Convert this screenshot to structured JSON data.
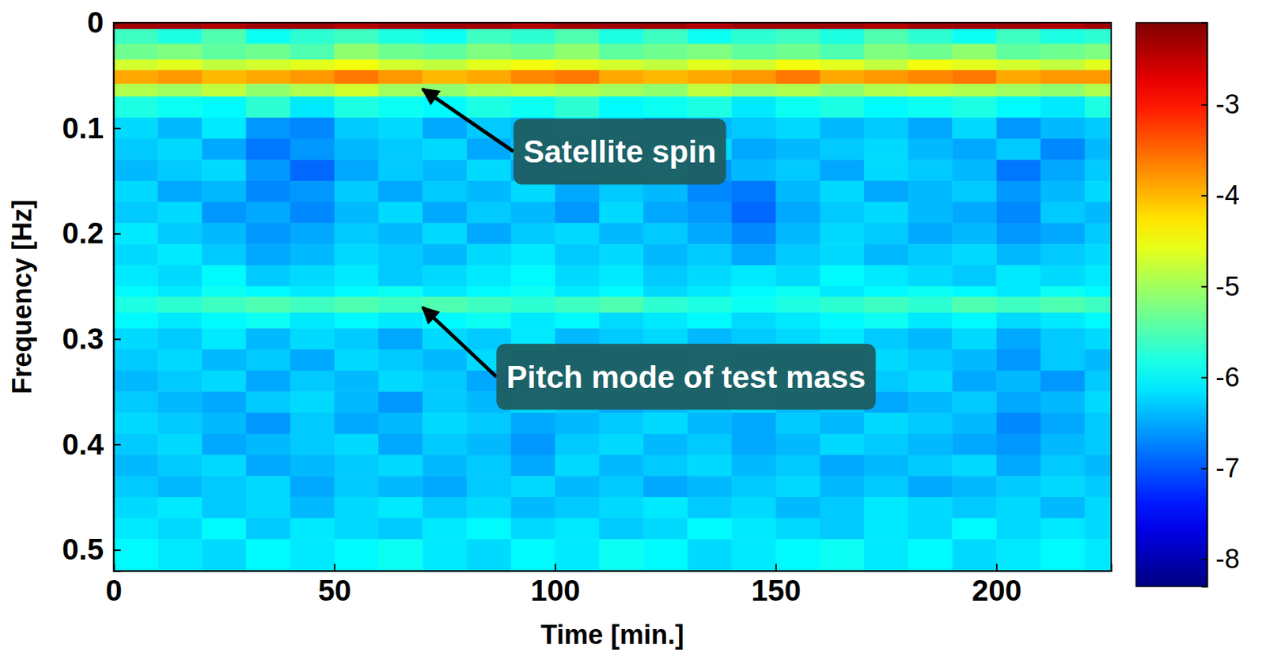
{
  "chart_data": {
    "type": "heatmap",
    "x_label": "Time [min.]",
    "y_label": "Frequency [Hz]",
    "xlim": [
      0,
      226
    ],
    "xticks": [
      0,
      50,
      100,
      150,
      200
    ],
    "ylim": [
      0,
      0.52
    ],
    "yticks": [
      0,
      0.1,
      0.2,
      0.3,
      0.4,
      0.5
    ],
    "x_bins": [
      0,
      10,
      20,
      30,
      40,
      50,
      60,
      70,
      80,
      90,
      100,
      110,
      120,
      130,
      140,
      150,
      160,
      170,
      180,
      190,
      200,
      210,
      220,
      226
    ],
    "y_bins": [
      0,
      0.006,
      0.02,
      0.035,
      0.045,
      0.058,
      0.07,
      0.09,
      0.11,
      0.13,
      0.15,
      0.17,
      0.19,
      0.21,
      0.23,
      0.25,
      0.26,
      0.275,
      0.29,
      0.31,
      0.33,
      0.35,
      0.37,
      0.39,
      0.41,
      0.43,
      0.45,
      0.47,
      0.49,
      0.52
    ],
    "z": [
      [
        -2.3,
        -2.3,
        -2.4,
        -2.3,
        -2.3,
        -2.4,
        -2.3,
        -2.3,
        -2.3,
        -2.4,
        -2.3,
        -2.3,
        -2.3,
        -2.4,
        -2.3,
        -2.3,
        -2.3,
        -2.4,
        -2.3,
        -2.3,
        -2.3,
        -2.4,
        -2.3
      ],
      [
        -5.6,
        -5.8,
        -5.5,
        -5.9,
        -5.7,
        -5.6,
        -5.8,
        -5.9,
        -5.6,
        -5.7,
        -5.5,
        -5.8,
        -5.6,
        -5.9,
        -5.7,
        -5.6,
        -5.8,
        -5.5,
        -5.7,
        -5.9,
        -5.6,
        -5.8,
        -5.7
      ],
      [
        -5.3,
        -5.2,
        -5.4,
        -5.3,
        -5.5,
        -5.1,
        -5.3,
        -5.4,
        -5.2,
        -5.3,
        -5.1,
        -5.4,
        -5.3,
        -5.2,
        -5.4,
        -5.3,
        -5.5,
        -5.2,
        -5.3,
        -5.1,
        -5.4,
        -5.3,
        -5.2
      ],
      [
        -4.7,
        -4.6,
        -4.8,
        -4.7,
        -4.6,
        -4.5,
        -4.7,
        -4.8,
        -4.6,
        -4.5,
        -4.6,
        -4.7,
        -4.8,
        -4.6,
        -4.7,
        -4.5,
        -4.6,
        -4.8,
        -4.5,
        -4.6,
        -4.7,
        -4.8,
        -4.6
      ],
      [
        -3.9,
        -3.8,
        -4.0,
        -3.9,
        -3.8,
        -3.6,
        -3.8,
        -4.0,
        -3.9,
        -3.7,
        -3.6,
        -3.9,
        -4.0,
        -3.9,
        -3.8,
        -3.6,
        -3.9,
        -3.8,
        -3.7,
        -3.6,
        -3.9,
        -3.8,
        -3.8
      ],
      [
        -4.9,
        -5.0,
        -4.8,
        -5.1,
        -4.9,
        -4.7,
        -5.0,
        -5.1,
        -4.9,
        -4.8,
        -4.9,
        -5.0,
        -5.1,
        -4.8,
        -5.0,
        -4.9,
        -5.1,
        -4.9,
        -4.8,
        -4.9,
        -5.0,
        -5.1,
        -4.9
      ],
      [
        -5.8,
        -5.9,
        -6.0,
        -5.7,
        -6.1,
        -5.8,
        -5.9,
        -6.0,
        -5.8,
        -5.9,
        -5.7,
        -6.0,
        -5.9,
        -5.8,
        -6.1,
        -5.9,
        -5.8,
        -6.0,
        -5.9,
        -5.8,
        -6.0,
        -6.1,
        -5.8
      ],
      [
        -6.2,
        -6.4,
        -6.1,
        -6.6,
        -6.7,
        -6.3,
        -6.2,
        -6.5,
        -6.3,
        -6.4,
        -6.2,
        -6.3,
        -6.5,
        -6.4,
        -6.3,
        -6.2,
        -6.4,
        -6.3,
        -6.5,
        -6.2,
        -6.6,
        -6.4,
        -6.3
      ],
      [
        -6.3,
        -6.2,
        -6.5,
        -6.8,
        -6.6,
        -6.4,
        -6.3,
        -6.2,
        -6.5,
        -6.3,
        -6.4,
        -6.6,
        -6.3,
        -6.2,
        -6.5,
        -6.4,
        -6.3,
        -6.2,
        -6.4,
        -6.5,
        -6.3,
        -6.7,
        -6.4
      ],
      [
        -6.4,
        -6.3,
        -6.2,
        -6.6,
        -6.9,
        -6.5,
        -6.3,
        -6.4,
        -6.2,
        -6.5,
        -6.3,
        -6.4,
        -6.2,
        -6.6,
        -6.4,
        -6.3,
        -6.5,
        -6.2,
        -6.3,
        -6.4,
        -6.8,
        -6.5,
        -6.3
      ],
      [
        -6.2,
        -6.5,
        -6.4,
        -6.7,
        -6.6,
        -6.3,
        -6.5,
        -6.3,
        -6.4,
        -6.2,
        -6.5,
        -6.3,
        -6.4,
        -6.7,
        -6.8,
        -6.4,
        -6.2,
        -6.5,
        -6.4,
        -6.3,
        -6.6,
        -6.4,
        -6.2
      ],
      [
        -6.3,
        -6.2,
        -6.6,
        -6.5,
        -6.7,
        -6.4,
        -6.2,
        -6.5,
        -6.3,
        -6.4,
        -6.6,
        -6.2,
        -6.5,
        -6.6,
        -6.9,
        -6.5,
        -6.3,
        -6.2,
        -6.4,
        -6.5,
        -6.7,
        -6.3,
        -6.4
      ],
      [
        -6.1,
        -6.3,
        -6.4,
        -6.6,
        -6.5,
        -6.3,
        -6.4,
        -6.2,
        -6.5,
        -6.3,
        -6.2,
        -6.4,
        -6.3,
        -6.5,
        -6.7,
        -6.4,
        -6.2,
        -6.3,
        -6.5,
        -6.4,
        -6.6,
        -6.5,
        -6.3
      ],
      [
        -6.2,
        -6.1,
        -6.3,
        -6.5,
        -6.4,
        -6.2,
        -6.3,
        -6.4,
        -6.2,
        -6.1,
        -6.3,
        -6.2,
        -6.4,
        -6.3,
        -6.5,
        -6.3,
        -6.2,
        -6.4,
        -6.3,
        -6.2,
        -6.4,
        -6.3,
        -6.2
      ],
      [
        -6.1,
        -6.2,
        -6.0,
        -6.3,
        -6.2,
        -6.1,
        -6.3,
        -6.2,
        -6.1,
        -6.0,
        -6.2,
        -6.1,
        -6.3,
        -6.2,
        -6.1,
        -6.2,
        -6.0,
        -6.1,
        -6.2,
        -6.3,
        -6.1,
        -6.2,
        -6.1
      ],
      [
        -6.0,
        -6.1,
        -5.9,
        -6.0,
        -6.1,
        -6.0,
        -5.9,
        -6.1,
        -6.0,
        -5.9,
        -6.1,
        -6.0,
        -6.2,
        -6.1,
        -6.0,
        -5.9,
        -6.1,
        -6.0,
        -5.9,
        -6.0,
        -6.1,
        -5.9,
        -6.0
      ],
      [
        -5.8,
        -5.7,
        -5.6,
        -5.5,
        -5.6,
        -5.5,
        -5.6,
        -5.5,
        -5.6,
        -5.7,
        -5.6,
        -5.5,
        -5.7,
        -5.8,
        -5.9,
        -5.8,
        -5.7,
        -5.6,
        -5.7,
        -5.5,
        -5.6,
        -5.5,
        -5.6
      ],
      [
        -6.0,
        -6.1,
        -6.0,
        -5.9,
        -6.1,
        -6.0,
        -6.1,
        -6.0,
        -5.9,
        -6.1,
        -6.0,
        -6.2,
        -6.1,
        -6.0,
        -6.2,
        -6.1,
        -6.0,
        -5.9,
        -6.1,
        -6.0,
        -6.2,
        -6.1,
        -6.0
      ],
      [
        -6.2,
        -6.3,
        -6.1,
        -6.4,
        -6.2,
        -6.3,
        -6.5,
        -6.2,
        -6.3,
        -6.1,
        -6.4,
        -6.3,
        -6.2,
        -6.4,
        -6.3,
        -6.2,
        -6.1,
        -6.3,
        -6.4,
        -6.2,
        -6.5,
        -6.3,
        -6.2
      ],
      [
        -6.3,
        -6.2,
        -6.4,
        -6.3,
        -6.5,
        -6.2,
        -6.3,
        -6.4,
        -6.2,
        -6.3,
        -6.5,
        -6.4,
        -6.3,
        -6.2,
        -6.4,
        -6.3,
        -6.5,
        -6.2,
        -6.3,
        -6.4,
        -6.6,
        -6.3,
        -6.4
      ],
      [
        -6.4,
        -6.3,
        -6.2,
        -6.5,
        -6.3,
        -6.4,
        -6.2,
        -6.3,
        -6.5,
        -6.4,
        -6.3,
        -6.2,
        -6.4,
        -6.5,
        -6.3,
        -6.2,
        -6.4,
        -6.3,
        -6.2,
        -6.5,
        -6.4,
        -6.6,
        -6.3
      ],
      [
        -6.3,
        -6.4,
        -6.5,
        -6.3,
        -6.2,
        -6.4,
        -6.6,
        -6.3,
        -6.4,
        -6.2,
        -6.3,
        -6.5,
        -6.4,
        -6.3,
        -6.2,
        -6.4,
        -6.3,
        -6.5,
        -6.4,
        -6.3,
        -6.5,
        -6.4,
        -6.2
      ],
      [
        -6.2,
        -6.3,
        -6.4,
        -6.6,
        -6.3,
        -6.5,
        -6.4,
        -6.2,
        -6.3,
        -6.5,
        -6.4,
        -6.3,
        -6.2,
        -6.4,
        -6.5,
        -6.3,
        -6.4,
        -6.2,
        -6.3,
        -6.4,
        -6.7,
        -6.5,
        -6.3
      ],
      [
        -6.3,
        -6.2,
        -6.5,
        -6.4,
        -6.3,
        -6.2,
        -6.5,
        -6.3,
        -6.4,
        -6.6,
        -6.3,
        -6.2,
        -6.4,
        -6.3,
        -6.5,
        -6.4,
        -6.2,
        -6.3,
        -6.4,
        -6.5,
        -6.6,
        -6.4,
        -6.3
      ],
      [
        -6.4,
        -6.3,
        -6.2,
        -6.5,
        -6.4,
        -6.3,
        -6.2,
        -6.4,
        -6.3,
        -6.5,
        -6.2,
        -6.4,
        -6.3,
        -6.2,
        -6.4,
        -6.3,
        -6.5,
        -6.4,
        -6.3,
        -6.2,
        -6.5,
        -6.3,
        -6.4
      ],
      [
        -6.3,
        -6.4,
        -6.3,
        -6.2,
        -6.5,
        -6.3,
        -6.4,
        -6.5,
        -6.3,
        -6.2,
        -6.4,
        -6.3,
        -6.5,
        -6.4,
        -6.3,
        -6.2,
        -6.4,
        -6.3,
        -6.5,
        -6.4,
        -6.3,
        -6.2,
        -6.3
      ],
      [
        -6.2,
        -6.1,
        -6.3,
        -6.2,
        -6.4,
        -6.2,
        -6.1,
        -6.3,
        -6.2,
        -6.4,
        -6.3,
        -6.2,
        -6.1,
        -6.3,
        -6.2,
        -6.4,
        -6.3,
        -6.1,
        -6.2,
        -6.3,
        -6.2,
        -6.4,
        -6.2
      ],
      [
        -6.1,
        -6.2,
        -6.0,
        -6.3,
        -6.1,
        -6.2,
        -6.3,
        -6.1,
        -6.0,
        -6.2,
        -6.1,
        -6.3,
        -6.2,
        -6.0,
        -6.1,
        -6.2,
        -6.3,
        -6.1,
        -6.2,
        -6.0,
        -6.2,
        -6.1,
        -6.2
      ],
      [
        -6.0,
        -6.1,
        -6.2,
        -6.0,
        -6.1,
        -6.0,
        -5.9,
        -6.1,
        -6.2,
        -6.0,
        -6.1,
        -5.9,
        -6.0,
        -6.2,
        -6.1,
        -6.0,
        -5.9,
        -6.1,
        -6.0,
        -6.2,
        -6.1,
        -6.0,
        -6.1
      ]
    ],
    "colorbar": {
      "range": [
        -8.3,
        -2.1
      ],
      "ticks": [
        -3,
        -4,
        -5,
        -6,
        -7,
        -8
      ]
    },
    "annotations": [
      {
        "text": "Satellite spin",
        "x": 70,
        "y": 0.063
      },
      {
        "text": "Pitch mode of test mass",
        "x": 70,
        "y": 0.27
      }
    ]
  }
}
